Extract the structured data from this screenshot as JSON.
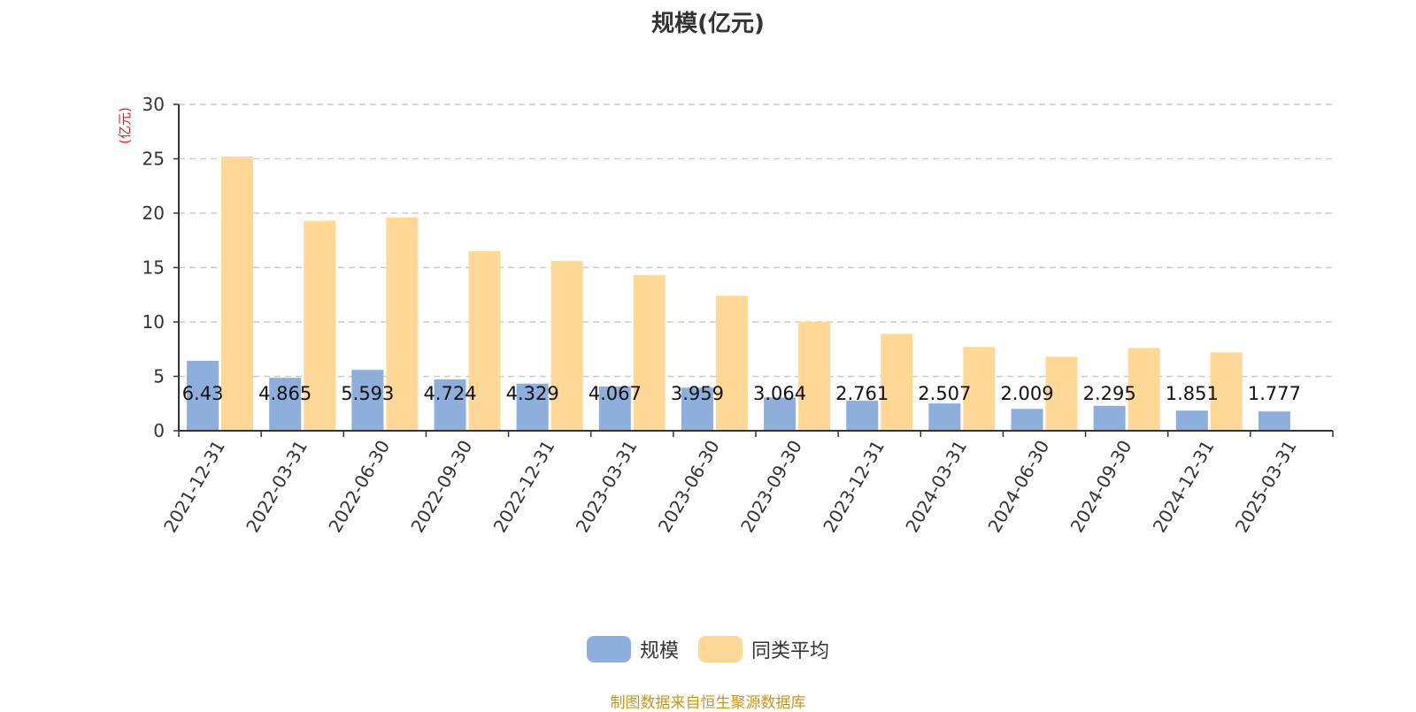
{
  "chart_data": {
    "type": "bar",
    "title": "规模(亿元)",
    "ylabel": "(亿元)",
    "xlabel": "",
    "ylim": [
      0,
      30
    ],
    "yticks": [
      0,
      5,
      10,
      15,
      20,
      25,
      30
    ],
    "grid": true,
    "legend_position": "bottom-center",
    "categories": [
      "2021-12-31",
      "2022-03-31",
      "2022-06-30",
      "2022-09-30",
      "2022-12-31",
      "2023-03-31",
      "2023-06-30",
      "2023-09-30",
      "2023-12-31",
      "2024-03-31",
      "2024-06-30",
      "2024-09-30",
      "2024-12-31",
      "2025-03-31"
    ],
    "series": [
      {
        "name": "规模",
        "color": "#8eaedc",
        "values": [
          6.43,
          4.865,
          5.593,
          4.724,
          4.329,
          4.067,
          3.959,
          3.064,
          2.761,
          2.507,
          2.009,
          2.295,
          1.851,
          1.777
        ],
        "labels": [
          "6.43",
          "4.865",
          "5.593",
          "4.724",
          "4.329",
          "4.067",
          "3.959",
          "3.064",
          "2.761",
          "2.507",
          "2.009",
          "2.295",
          "1.851",
          "1.777"
        ]
      },
      {
        "name": "同类平均",
        "color": "#ffd898",
        "values": [
          25.2,
          19.3,
          19.6,
          16.5,
          15.6,
          14.3,
          12.4,
          10.0,
          8.9,
          7.7,
          6.8,
          7.6,
          7.2,
          null
        ]
      }
    ]
  },
  "source_note": "制图数据来自恒生聚源数据库"
}
